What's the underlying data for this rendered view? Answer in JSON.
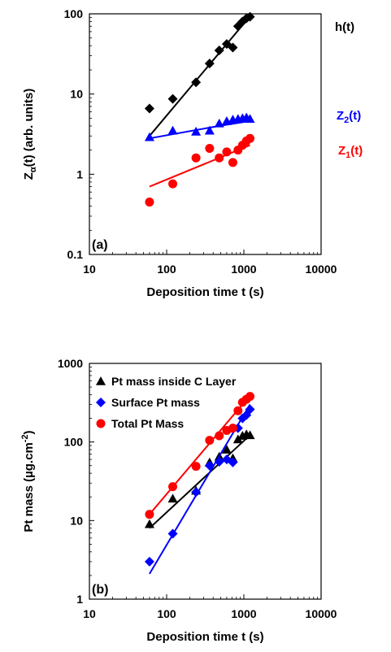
{
  "chart_data": [
    {
      "type": "scatter",
      "panel_label": "(a)",
      "xlabel": "Deposition time t (s)",
      "ylabel_main": "Z",
      "ylabel_sub": "α",
      "ylabel_rest": "(t) (arb. units)",
      "xscale": "log",
      "yscale": "log",
      "xlim": [
        10,
        10000
      ],
      "ylim": [
        0.1,
        100
      ],
      "xticks": [
        "10",
        "100",
        "1000",
        "10000"
      ],
      "yticks": [
        "0.1",
        "1",
        "10",
        "100"
      ],
      "series": [
        {
          "key": "h",
          "label_main": "h(t)",
          "label_sub": "",
          "label_tail": "",
          "color": "#000000",
          "marker": "diamond",
          "points": [
            [
              60,
              6.6
            ],
            [
              120,
              8.7
            ],
            [
              240,
              14
            ],
            [
              360,
              24
            ],
            [
              480,
              35
            ],
            [
              600,
              42
            ],
            [
              720,
              38
            ],
            [
              840,
              70
            ],
            [
              960,
              80
            ],
            [
              1080,
              88
            ],
            [
              1200,
              92
            ]
          ],
          "fit": [
            [
              60,
              3.0
            ],
            [
              1200,
              93
            ]
          ]
        },
        {
          "key": "z2",
          "label_main": "Z",
          "label_sub": "2",
          "label_tail": "(t)",
          "color": "#0000ff",
          "marker": "triangle",
          "points": [
            [
              60,
              2.9
            ],
            [
              120,
              3.5
            ],
            [
              240,
              3.4
            ],
            [
              360,
              3.5
            ],
            [
              480,
              4.3
            ],
            [
              600,
              4.6
            ],
            [
              720,
              4.8
            ],
            [
              840,
              4.9
            ],
            [
              960,
              5.0
            ],
            [
              1080,
              5.1
            ],
            [
              1200,
              4.9
            ]
          ],
          "fit": [
            [
              60,
              2.8
            ],
            [
              480,
              4.0
            ],
            [
              1200,
              4.6
            ]
          ]
        },
        {
          "key": "z1",
          "label_main": "Z",
          "label_sub": "1",
          "label_tail": "(t)",
          "color": "#ff0000",
          "marker": "circle",
          "points": [
            [
              60,
              0.45
            ],
            [
              120,
              0.76
            ],
            [
              240,
              1.6
            ],
            [
              360,
              2.1
            ],
            [
              480,
              1.6
            ],
            [
              600,
              1.9
            ],
            [
              720,
              1.4
            ],
            [
              840,
              2.0
            ],
            [
              960,
              2.3
            ],
            [
              1080,
              2.6
            ],
            [
              1200,
              2.8
            ]
          ],
          "fit": [
            [
              60,
              0.7
            ],
            [
              1200,
              2.3
            ]
          ]
        }
      ]
    },
    {
      "type": "scatter",
      "panel_label": "(b)",
      "xlabel": "Deposition time t (s)",
      "ylabel_main": "Pt mass (µg.cm",
      "ylabel_sup": "-2",
      "ylabel_tail": ")",
      "xscale": "log",
      "yscale": "log",
      "xlim": [
        10,
        10000
      ],
      "ylim": [
        1,
        1000
      ],
      "xticks": [
        "10",
        "100",
        "1000",
        "10000"
      ],
      "yticks": [
        "1",
        "10",
        "100",
        "1000"
      ],
      "legend_position": "top-left",
      "series": [
        {
          "name": "Pt mass inside C Layer",
          "color": "#000000",
          "marker": "triangle",
          "points": [
            [
              60,
              9
            ],
            [
              120,
              19
            ],
            [
              240,
              24
            ],
            [
              360,
              55
            ],
            [
              480,
              65
            ],
            [
              600,
              80
            ],
            [
              720,
              62
            ],
            [
              840,
              108
            ],
            [
              960,
              120
            ],
            [
              1080,
              125
            ],
            [
              1200,
              122
            ]
          ],
          "fit": [
            [
              60,
              8
            ],
            [
              1200,
              122
            ]
          ]
        },
        {
          "name": "Surface Pt mass",
          "color": "#0000ff",
          "marker": "diamond",
          "points": [
            [
              60,
              3
            ],
            [
              120,
              6.8
            ],
            [
              240,
              23
            ],
            [
              360,
              50
            ],
            [
              480,
              56
            ],
            [
              600,
              60
            ],
            [
              720,
              55
            ],
            [
              840,
              150
            ],
            [
              960,
              200
            ],
            [
              1080,
              220
            ],
            [
              1200,
              260
            ]
          ],
          "fit": [
            [
              60,
              2.1
            ],
            [
              1200,
              300
            ]
          ]
        },
        {
          "name": "Total Pt Mass",
          "color": "#ff0000",
          "marker": "circle",
          "points": [
            [
              60,
              12
            ],
            [
              120,
              27
            ],
            [
              240,
              49
            ],
            [
              360,
              105
            ],
            [
              480,
              120
            ],
            [
              600,
              140
            ],
            [
              720,
              150
            ],
            [
              840,
              250
            ],
            [
              960,
              320
            ],
            [
              1080,
              350
            ],
            [
              1200,
              380
            ]
          ],
          "fit": [
            [
              60,
              12
            ],
            [
              1200,
              390
            ]
          ]
        }
      ]
    }
  ]
}
